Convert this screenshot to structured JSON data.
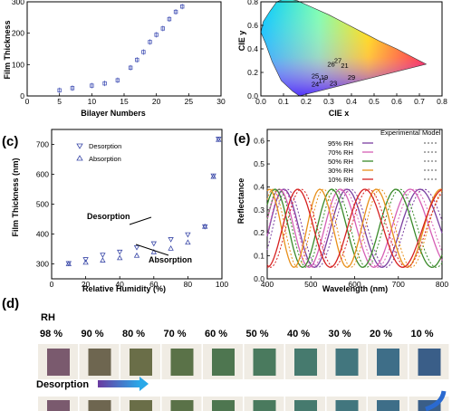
{
  "panels": {
    "c": "(c)",
    "d": "(d)",
    "e": "(e)"
  },
  "chart_data": [
    {
      "id": "a",
      "type": "scatter",
      "xlabel": "Bilayer Numbers",
      "ylabel": "Film Thickness",
      "xlim": [
        0,
        30
      ],
      "ylim": [
        0,
        300
      ],
      "xticks": [
        0,
        5,
        10,
        15,
        20,
        25,
        30
      ],
      "yticks": [
        0,
        100,
        200,
        300
      ],
      "yticklabels": [
        "0",
        "100",
        "200",
        "300"
      ],
      "x": [
        5,
        7,
        10,
        12,
        14,
        16,
        17,
        18,
        19,
        20,
        21,
        22,
        23,
        24
      ],
      "y": [
        18,
        25,
        33,
        40,
        50,
        90,
        115,
        140,
        172,
        195,
        215,
        245,
        268,
        285
      ]
    },
    {
      "id": "b",
      "type": "scatter",
      "xlabel": "CIE x",
      "ylabel": "CIE y",
      "xlim": [
        0,
        0.8
      ],
      "ylim": [
        0,
        0.8
      ],
      "xticks": [
        0.0,
        0.1,
        0.2,
        0.3,
        0.4,
        0.5,
        0.6,
        0.7,
        0.8
      ],
      "xticklabels": [
        "0.0",
        "0.1",
        "0.2",
        "0.3",
        "0.4",
        "0.5",
        "0.6",
        "0.7",
        "0.8"
      ],
      "yticks": [
        0.0,
        0.2,
        0.4,
        0.6,
        0.8
      ],
      "yticklabels": [
        "0.0",
        "0.2",
        "0.4",
        "0.6",
        "0.8"
      ],
      "points": [
        {
          "label": "27",
          "x": 0.34,
          "y": 0.28
        },
        {
          "label": "26",
          "x": 0.31,
          "y": 0.25
        },
        {
          "label": "21",
          "x": 0.37,
          "y": 0.24
        },
        {
          "label": "25",
          "x": 0.24,
          "y": 0.15
        },
        {
          "label": "19",
          "x": 0.28,
          "y": 0.14
        },
        {
          "label": "29",
          "x": 0.4,
          "y": 0.14
        },
        {
          "label": "17",
          "x": 0.27,
          "y": 0.11
        },
        {
          "label": "24",
          "x": 0.24,
          "y": 0.08
        },
        {
          "label": "23",
          "x": 0.32,
          "y": 0.09
        }
      ]
    },
    {
      "id": "c",
      "type": "scatter",
      "xlabel": "Relative Humidity (%)",
      "ylabel": "Film Thickness (nm)",
      "xlim": [
        0,
        100
      ],
      "ylim": [
        250,
        750
      ],
      "xticks": [
        0,
        20,
        40,
        60,
        80,
        100
      ],
      "yticks": [
        300,
        400,
        500,
        600,
        700
      ],
      "series": [
        {
          "name": "Desorption",
          "marker": "triangle-down",
          "x": [
            10,
            20,
            30,
            40,
            50,
            60,
            70,
            80,
            90,
            95,
            98
          ],
          "y": [
            302,
            315,
            330,
            340,
            355,
            368,
            382,
            398,
            425,
            595,
            718
          ]
        },
        {
          "name": "Absorption",
          "marker": "triangle-up",
          "x": [
            10,
            20,
            30,
            40,
            50,
            60,
            70,
            80,
            90,
            95,
            98
          ],
          "y": [
            300,
            305,
            312,
            320,
            328,
            340,
            352,
            372,
            425,
            592,
            716
          ]
        }
      ],
      "annotations": [
        "Desorption",
        "Absorption"
      ]
    },
    {
      "id": "e",
      "type": "line",
      "xlabel": "Wavelength (nm)",
      "ylabel": "Reflectance",
      "xlim": [
        400,
        800
      ],
      "ylim": [
        0,
        0.65
      ],
      "xticks": [
        400,
        500,
        600,
        700,
        800
      ],
      "yticks": [
        0.0,
        0.1,
        0.2,
        0.3,
        0.4,
        0.5,
        0.6
      ],
      "yticklabels": [
        "0.0",
        "0.1",
        "0.2",
        "0.3",
        "0.4",
        "0.5",
        "0.6"
      ],
      "legend_headers": [
        "Experimental",
        "Model"
      ],
      "series": [
        {
          "name": "95% RH",
          "color": "#7b3fa0",
          "peaks": [
            438,
            572,
            750
          ]
        },
        {
          "name": "70% RH",
          "color": "#d65fb5",
          "peaks": [
            428,
            558,
            732
          ]
        },
        {
          "name": "50% RH",
          "color": "#3a8a2a",
          "peaks": [
            418,
            540,
            710
          ]
        },
        {
          "name": "30% RH",
          "color": "#e8901a",
          "peaks": [
            405,
            515,
            675
          ]
        },
        {
          "name": "10% RH",
          "color": "#d62020",
          "peaks": [
            470,
            610,
            780
          ]
        }
      ]
    }
  ],
  "humidity_strip": {
    "title": "RH",
    "labels": [
      "98 %",
      "90 %",
      "80 %",
      "70 %",
      "60 %",
      "50 %",
      "40 %",
      "30 %",
      "20 %",
      "10 %"
    ],
    "row1_colors": [
      "#7a5a6e",
      "#6e6650",
      "#6a6e48",
      "#5a7248",
      "#4e7650",
      "#4a7a5e",
      "#467a6e",
      "#42767e",
      "#3e6e88",
      "#3a5e88"
    ],
    "row2_colors": [
      "#7a5a6e",
      "#6e6650",
      "#6a6e48",
      "#5a7248",
      "#4e7650",
      "#4a7a5e",
      "#467a6e",
      "#42767e",
      "#3e6e88",
      "#3a5e88"
    ],
    "arrow_label": "Desorption"
  }
}
